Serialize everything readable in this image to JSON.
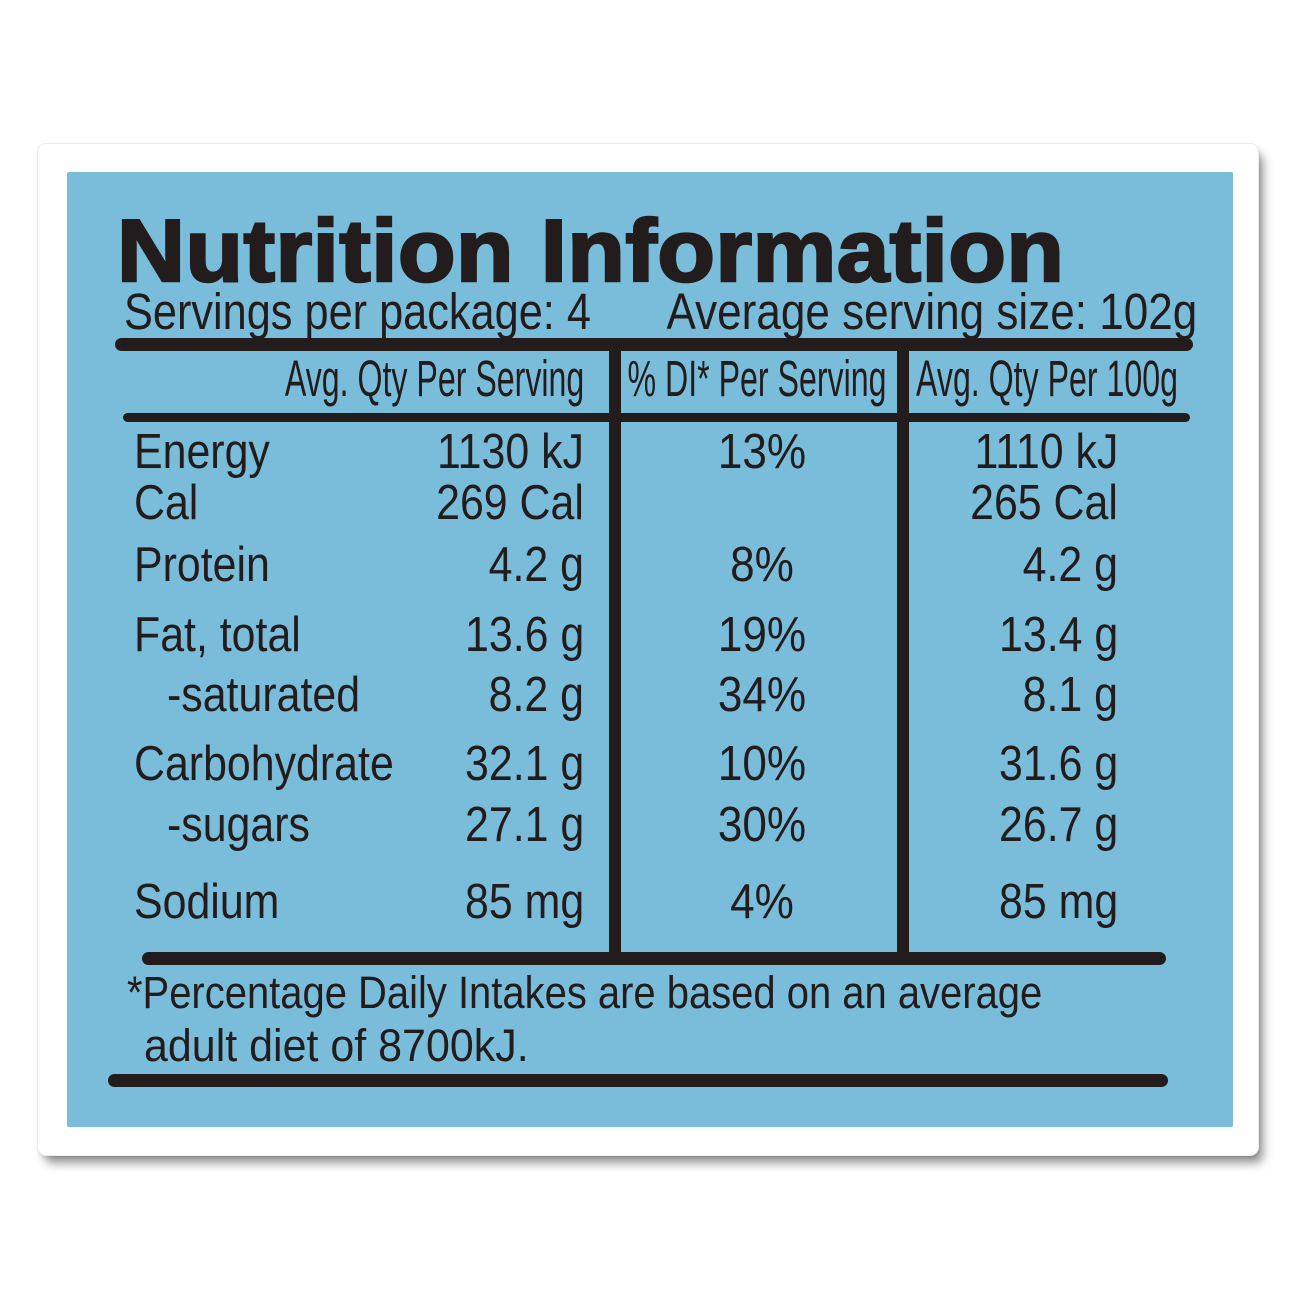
{
  "colors": {
    "panel_blue": "#7abddb",
    "ink": "#221c1c",
    "card_white": "#ffffff"
  },
  "label": {
    "title": "Nutrition Information",
    "servings_line": "Servings per package: 4",
    "serving_size_line": "Average serving size: 102g",
    "footnote_line1": "*Percentage Daily Intakes are based on an average",
    "footnote_line2": "adult diet of 8700kJ."
  },
  "table": {
    "columns": [
      "",
      "Avg. Qty Per Serving",
      "% DI* Per Serving",
      "Avg. Qty Per 100g"
    ],
    "rows": [
      {
        "nutrient": "Energy",
        "per_serving": "1130 kJ",
        "di_per_serving": "13%",
        "per_100g": "1110 kJ",
        "indent": false
      },
      {
        "nutrient": "Cal",
        "per_serving": "269 Cal",
        "di_per_serving": "",
        "per_100g": "265 Cal",
        "indent": false
      },
      {
        "nutrient": "Protein",
        "per_serving": "4.2 g",
        "di_per_serving": "8%",
        "per_100g": "4.2 g",
        "indent": false
      },
      {
        "nutrient": "Fat, total",
        "per_serving": "13.6 g",
        "di_per_serving": "19%",
        "per_100g": "13.4 g",
        "indent": false
      },
      {
        "nutrient": "-saturated",
        "per_serving": "8.2 g",
        "di_per_serving": "34%",
        "per_100g": "8.1 g",
        "indent": true
      },
      {
        "nutrient": "Carbohydrate",
        "per_serving": "32.1 g",
        "di_per_serving": "10%",
        "per_100g": "31.6 g",
        "indent": false
      },
      {
        "nutrient": "-sugars",
        "per_serving": "27.1 g",
        "di_per_serving": "30%",
        "per_100g": "26.7 g",
        "indent": true
      },
      {
        "nutrient": "Sodium",
        "per_serving": "85 mg",
        "di_per_serving": "4%",
        "per_100g": "85 mg",
        "indent": false
      }
    ]
  }
}
